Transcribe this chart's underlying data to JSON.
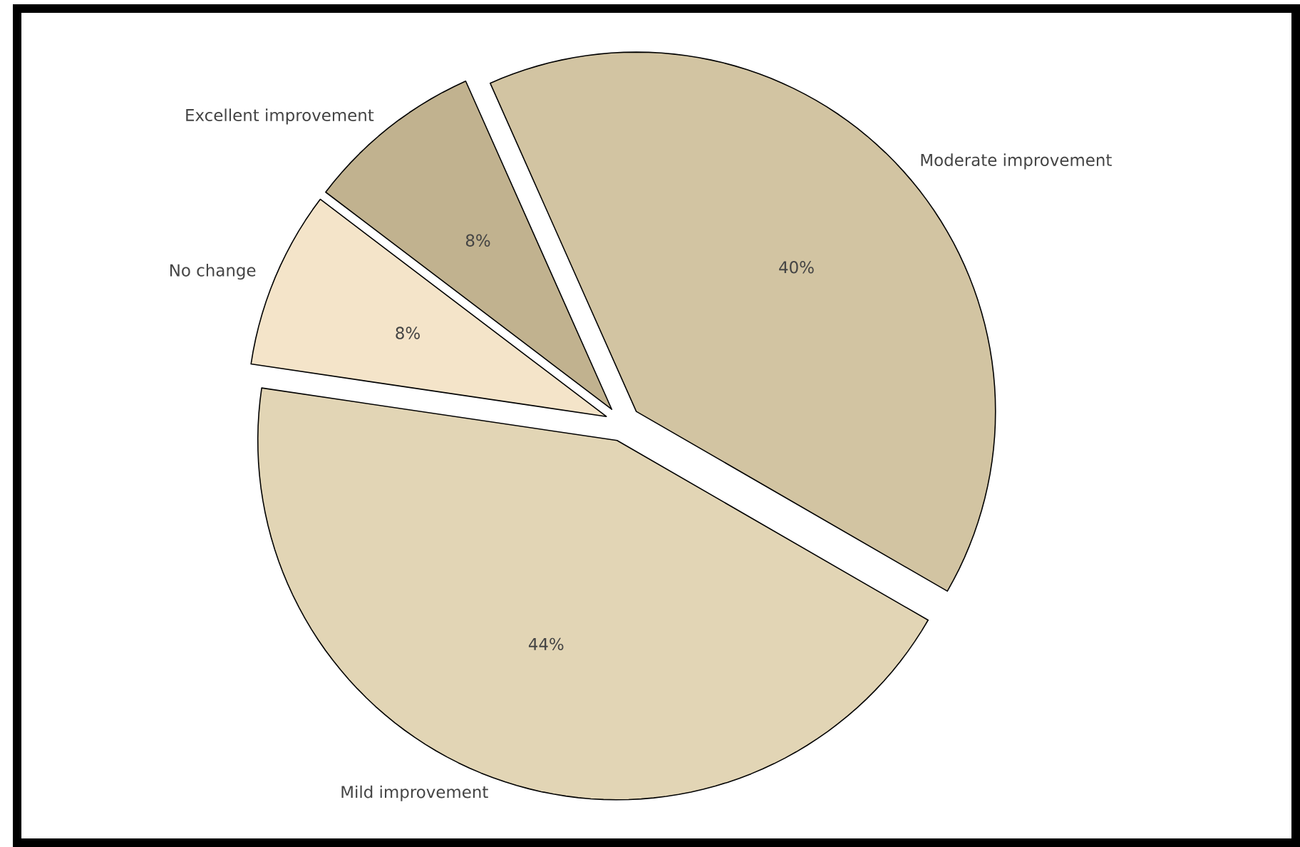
{
  "chart_data": {
    "type": "pie",
    "categories": [
      "Moderate improvement",
      "Excellent improvement",
      "No change",
      "Mild improvement"
    ],
    "values": [
      40,
      8,
      8,
      44
    ],
    "colors": [
      "#d2c4a2",
      "#c1b28f",
      "#f4e4c9",
      "#e2d5b5"
    ],
    "value_labels": [
      "40%",
      "8%",
      "8%",
      "44%"
    ]
  }
}
